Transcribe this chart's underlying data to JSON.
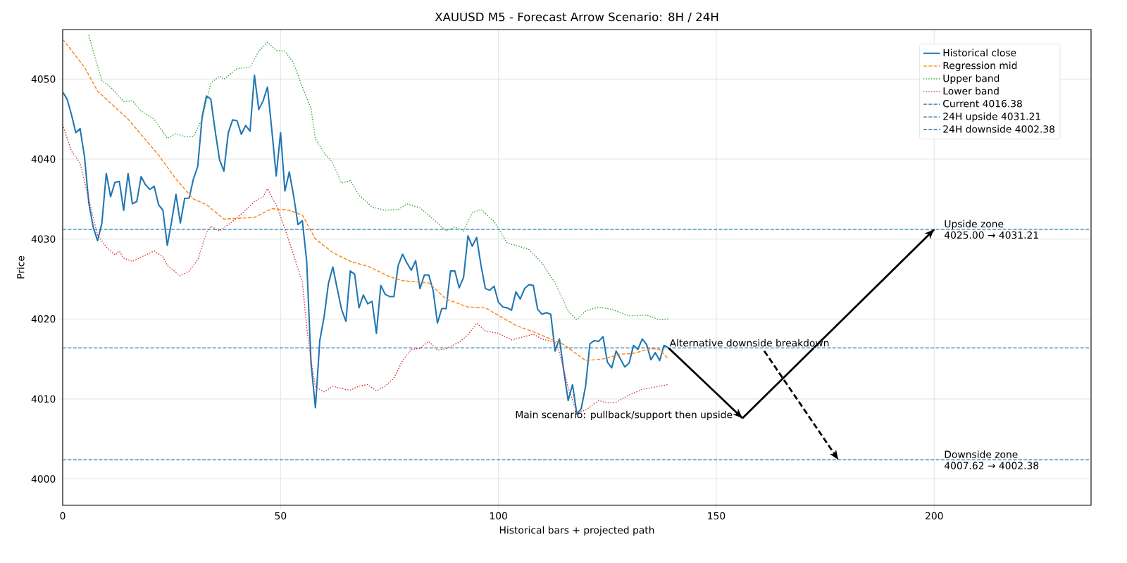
{
  "chart_data": {
    "type": "line",
    "title": "XAUUSD M5 - Forecast Arrow Scenario: 8H / 24H",
    "xlabel": "Historical bars + projected path",
    "ylabel": "Price",
    "xlim": [
      0,
      236
    ],
    "ylim": [
      3996.7,
      4056.2
    ],
    "xticks": [
      0,
      50,
      100,
      150,
      200
    ],
    "yticks": [
      4000,
      4010,
      4020,
      4030,
      4040,
      4050
    ],
    "grid": true,
    "legend": "top right",
    "series": [
      {
        "name": "Historical close",
        "color": "#1f77b4",
        "line_style": "solid",
        "x": [
          0,
          1,
          2,
          3,
          4,
          5,
          6,
          7,
          8,
          9,
          10,
          11,
          12,
          13,
          14,
          15,
          16,
          17,
          18,
          19,
          20,
          21,
          22,
          23,
          24,
          25,
          26,
          27,
          28,
          29,
          30,
          31,
          32,
          33,
          34,
          35,
          36,
          37,
          38,
          39,
          40,
          41,
          42,
          43,
          44,
          45,
          46,
          47,
          48,
          49,
          50,
          51,
          52,
          53,
          54,
          55,
          56,
          57,
          58,
          59,
          60,
          61,
          62,
          63,
          64,
          65,
          66,
          67,
          68,
          69,
          70,
          71,
          72,
          73,
          74,
          75,
          76,
          77,
          78,
          79,
          80,
          81,
          82,
          83,
          84,
          85,
          86,
          87,
          88,
          89,
          90,
          91,
          92,
          93,
          94,
          95,
          96,
          97,
          98,
          99,
          100,
          101,
          102,
          103,
          104,
          105,
          106,
          107,
          108,
          109,
          110,
          111,
          112,
          113,
          114,
          115,
          116,
          117,
          118,
          119,
          120,
          121,
          122,
          123,
          124,
          125,
          126,
          127,
          128,
          129,
          130,
          131,
          132,
          133,
          134,
          135,
          136,
          137,
          138,
          139
        ],
        "values": [
          4048.4,
          4047.5,
          4045.6,
          4043.3,
          4043.8,
          4040.3,
          4034.5,
          4031.5,
          4029.8,
          4032,
          4038.2,
          4035.3,
          4037.1,
          4037.2,
          4033.6,
          4038.2,
          4034.4,
          4034.7,
          4037.8,
          4036.8,
          4036.2,
          4036.6,
          4034.3,
          4033.6,
          4029.2,
          4032.2,
          4035.6,
          4032,
          4035.1,
          4035.1,
          4037.5,
          4039.1,
          4045.3,
          4047.9,
          4047.5,
          4043.5,
          4039.9,
          4038.5,
          4043.3,
          4044.9,
          4044.8,
          4043.1,
          4044.2,
          4043.5,
          4050.5,
          4046.2,
          4047.3,
          4049,
          4043.6,
          4037.9,
          4043.3,
          4036,
          4038.4,
          4035.4,
          4031.8,
          4032.3,
          4027.2,
          4014.4,
          4008.9,
          4017.3,
          4020.3,
          4024.5,
          4026.5,
          4023.8,
          4021.2,
          4019.7,
          4026,
          4025.6,
          4021.4,
          4023,
          4021.9,
          4022.2,
          4018.2,
          4024.2,
          4023.1,
          4022.8,
          4022.8,
          4026.7,
          4028.1,
          4027,
          4026.1,
          4027.3,
          4023.8,
          4025.5,
          4025.5,
          4023.6,
          4019.5,
          4021.3,
          4021.3,
          4026,
          4026,
          4023.9,
          4025.2,
          4030.4,
          4029.1,
          4030.2,
          4026.7,
          4023.8,
          4023.6,
          4024.1,
          4022.1,
          4021.5,
          4021.4,
          4021.1,
          4023.4,
          4022.5,
          4023.8,
          4024.3,
          4024.2,
          4021.2,
          4020.6,
          4020.8,
          4020.6,
          4016,
          4017.5,
          4013.5,
          4009.8,
          4011.8,
          4008.1,
          4008.8,
          4011.6,
          4016.9,
          4017.3,
          4017.2,
          4017.8,
          4014.6,
          4013.9,
          4016,
          4015,
          4014,
          4014.5,
          4016.7,
          4016.2,
          4017.5,
          4016.8,
          4014.9,
          4015.8,
          4014.8,
          4016.7,
          4016.4
        ]
      },
      {
        "name": "Regression mid",
        "color": "#ff7f0e",
        "line_style": "dashed",
        "x": [
          0,
          5,
          8,
          15,
          22,
          26,
          30,
          33,
          37,
          44,
          48,
          52,
          55,
          58,
          62,
          66,
          70,
          75,
          78,
          84,
          88,
          93,
          97,
          104,
          108,
          112,
          115,
          120,
          124,
          128,
          131,
          135,
          137,
          139
        ],
        "values": [
          4055,
          4051.5,
          4048.5,
          4045,
          4040.5,
          4037.5,
          4035,
          4034.3,
          4032.5,
          4032.7,
          4033.8,
          4033.6,
          4033,
          4030,
          4028.3,
          4027.2,
          4026.6,
          4025.3,
          4024.8,
          4024.5,
          4022.5,
          4021.5,
          4021.4,
          4019.2,
          4018.4,
          4017.5,
          4016.8,
          4014.8,
          4015,
          4015.6,
          4015.7,
          4016.3,
          4016.2,
          4015
        ]
      },
      {
        "name": "Upper band",
        "color": "#2ca02c",
        "line_style": "dotted",
        "x": [
          6,
          7,
          9,
          11,
          14,
          16,
          18,
          21,
          24,
          26,
          28,
          30,
          32,
          34,
          36,
          37,
          40,
          43,
          45,
          47,
          49,
          51,
          53,
          55,
          57,
          58,
          60,
          62,
          64,
          66,
          68,
          71,
          74,
          77,
          79,
          82,
          85,
          88,
          90,
          92,
          94,
          96,
          99,
          102,
          104,
          107,
          110,
          113,
          116,
          118,
          120,
          123,
          126,
          130,
          134,
          137,
          139
        ],
        "values": [
          4055.5,
          4053.5,
          4049.8,
          4049,
          4047.2,
          4047.3,
          4046,
          4045,
          4042.6,
          4043.2,
          4042.8,
          4042.8,
          4045,
          4049.5,
          4050.4,
          4050,
          4051.3,
          4051.5,
          4053.5,
          4054.6,
          4053.6,
          4053.5,
          4052,
          4049,
          4046.3,
          4042.5,
          4040.8,
          4039.5,
          4037,
          4037.3,
          4035.5,
          4034,
          4033.6,
          4033.7,
          4034.4,
          4033.9,
          4032.5,
          4031,
          4031.5,
          4031,
          4033.3,
          4033.7,
          4032.2,
          4029.5,
          4029.2,
          4028.7,
          4027,
          4024.5,
          4021,
          4019.9,
          4021,
          4021.5,
          4021.2,
          4020.4,
          4020.5,
          4019.9,
          4020
        ]
      },
      {
        "name": "Lower band",
        "color": "#d62728",
        "line_style": "dotted",
        "x": [
          0,
          2,
          4,
          6,
          8,
          10,
          12,
          13,
          14,
          16,
          19,
          21,
          23,
          24,
          27,
          29,
          31,
          33,
          34,
          36,
          39,
          42,
          44,
          46,
          47,
          49,
          51,
          53,
          55,
          56,
          57,
          58,
          60,
          62,
          64,
          66,
          68,
          70,
          72,
          74,
          76,
          78,
          80,
          82,
          84,
          86,
          88,
          91,
          93,
          95,
          97,
          100,
          103,
          106,
          108,
          110,
          113,
          114,
          116,
          118,
          120,
          123,
          125,
          127,
          130,
          133,
          136,
          139
        ],
        "values": [
          4044.3,
          4041,
          4039.5,
          4035,
          4030.5,
          4029,
          4028,
          4028.5,
          4027.6,
          4027.2,
          4028,
          4028.5,
          4027.8,
          4026.7,
          4025.4,
          4026,
          4027.4,
          4030.8,
          4031.6,
          4031,
          4032.2,
          4033.6,
          4034.7,
          4035.3,
          4036.3,
          4034.2,
          4031.3,
          4028,
          4024.6,
          4019,
          4014.8,
          4011.5,
          4010.9,
          4011.6,
          4011.3,
          4011.1,
          4011.6,
          4011.8,
          4011,
          4011.6,
          4012.6,
          4014.8,
          4016.2,
          4016.3,
          4017.2,
          4016.1,
          4016.3,
          4017.1,
          4018,
          4019.5,
          4018.5,
          4018.2,
          4017.4,
          4017.8,
          4018.1,
          4017.5,
          4017.1,
          4015.8,
          4011.4,
          4008.3,
          4008.6,
          4009.8,
          4009.5,
          4009.6,
          4010.5,
          4011.2,
          4011.5,
          4011.8
        ]
      },
      {
        "color": "#000000",
        "line_style": "solid",
        "x": [
          139,
          156
        ],
        "values": [
          4016.4,
          4007.6
        ]
      },
      {
        "color": "#000000",
        "line_style": "solid",
        "x": [
          156,
          200
        ],
        "values": [
          4007.6,
          4031.2
        ]
      },
      {
        "color": "#000000",
        "line_style": "dashed",
        "x": [
          161,
          178
        ],
        "values": [
          4016,
          4002.4
        ]
      }
    ],
    "ref_lines": [
      {
        "axis": "y",
        "value": 4016.38,
        "label": "Current 4016.38",
        "color": "#1f77b4",
        "line_style": "dashed"
      },
      {
        "axis": "y",
        "value": 4031.21,
        "label": "24H upside 4031.21",
        "color": "#1f77b4",
        "line_style": "dashed"
      },
      {
        "axis": "y",
        "value": 4002.38,
        "label": "24H downside 4002.38",
        "color": "#1f77b4",
        "line_style": "dashed"
      }
    ],
    "annotations": [
      {
        "text": "Alternative downside breakdown",
        "x": 139,
        "y": 4016.4
      },
      {
        "text": "Main scenario: pullback/support then upside",
        "x": 156,
        "y": 4007.6
      },
      {
        "text": "Upside zone",
        "x": 202,
        "y": 4031.21
      },
      {
        "text": "4025.00 → 4031.21",
        "x": 202,
        "y": 4031.21
      },
      {
        "text": "Downside zone",
        "x": 202,
        "y": 4002.38
      },
      {
        "text": "4007.62 → 4002.38",
        "x": 202,
        "y": 4002.38
      }
    ]
  }
}
